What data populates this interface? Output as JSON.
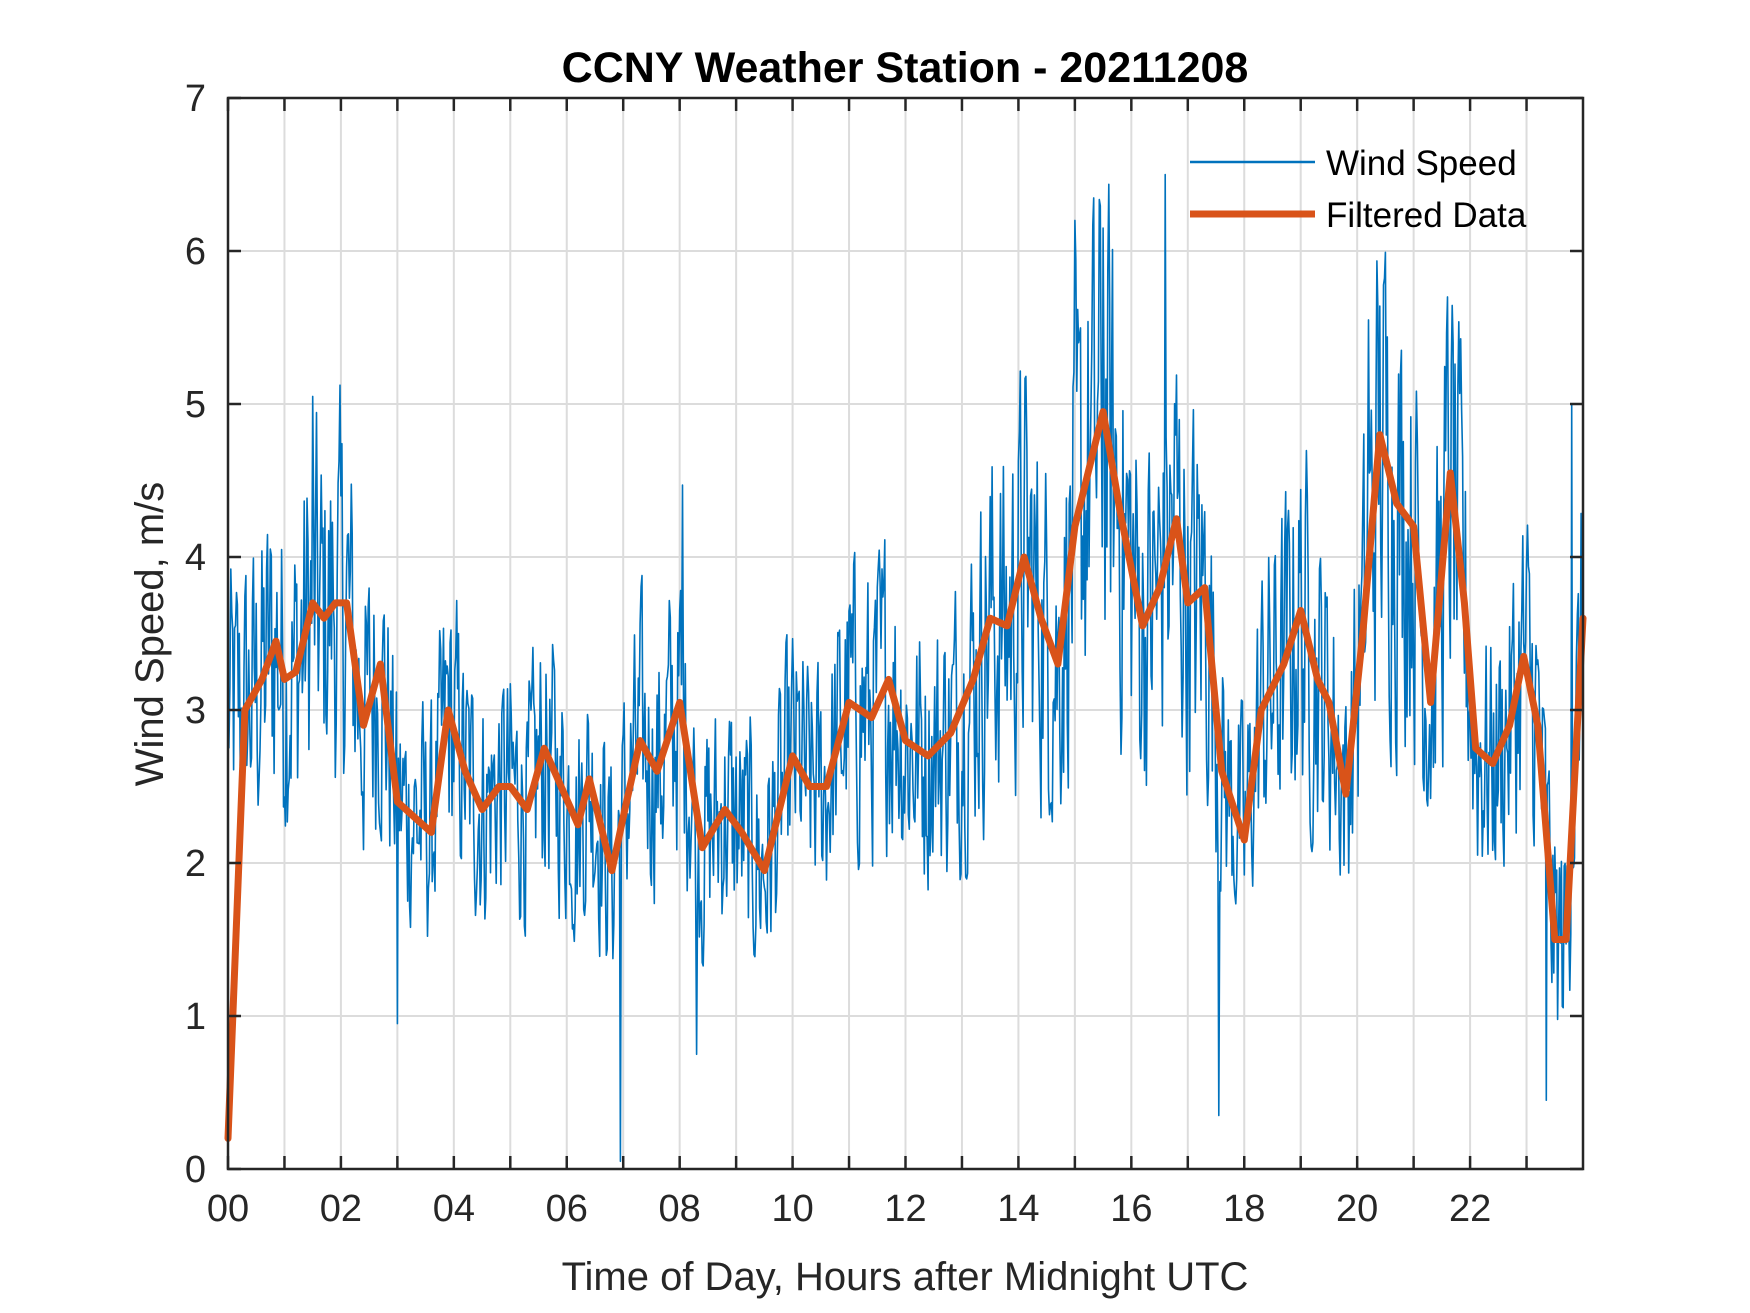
{
  "chart_data": {
    "type": "line",
    "title": "CCNY Weather Station - 20211208",
    "xlabel": "Time of Day, Hours after Midnight UTC",
    "ylabel": "Wind Speed, m/s",
    "xlim": [
      0,
      24
    ],
    "ylim": [
      0,
      7
    ],
    "x_ticks": [
      0,
      1,
      2,
      3,
      4,
      5,
      6,
      7,
      8,
      9,
      10,
      11,
      12,
      13,
      14,
      15,
      16,
      17,
      18,
      19,
      20,
      21,
      22,
      23
    ],
    "x_tick_labels": [
      "00",
      "",
      "02",
      "",
      "04",
      "",
      "06",
      "",
      "08",
      "",
      "10",
      "",
      "12",
      "",
      "14",
      "",
      "16",
      "",
      "18",
      "",
      "20",
      "",
      "22",
      ""
    ],
    "y_ticks": [
      0,
      1,
      2,
      3,
      4,
      5,
      6,
      7
    ],
    "y_tick_labels": [
      "0",
      "1",
      "2",
      "3",
      "4",
      "5",
      "6",
      "7"
    ],
    "grid": true,
    "legend": {
      "placement": "top-right",
      "entries": [
        "Wind Speed",
        "Filtered Data"
      ]
    },
    "series": [
      {
        "name": "Wind Speed",
        "color": "#0072BD",
        "style": "thin",
        "noise_envelope_note": "high-frequency raw samples oscillating around Filtered Data; peak 6.5 near 16.6 h, min 0.05 near 7.0 h",
        "peaks": [
          {
            "x": 1.5,
            "y": 5.05
          },
          {
            "x": 8.05,
            "y": 4.47
          },
          {
            "x": 15.0,
            "y": 6.2
          },
          {
            "x": 15.5,
            "y": 6.15
          },
          {
            "x": 16.6,
            "y": 6.5
          },
          {
            "x": 20.2,
            "y": 5.55
          },
          {
            "x": 21.6,
            "y": 5.7
          },
          {
            "x": 23.8,
            "y": 5.0
          }
        ],
        "troughs": [
          {
            "x": 3.0,
            "y": 0.95
          },
          {
            "x": 6.95,
            "y": 0.05
          },
          {
            "x": 8.3,
            "y": 0.75
          },
          {
            "x": 17.55,
            "y": 0.35
          },
          {
            "x": 23.35,
            "y": 0.45
          }
        ]
      },
      {
        "name": "Filtered Data",
        "color": "#D95319",
        "style": "thick",
        "x": [
          0.0,
          0.3,
          0.6,
          0.85,
          1.0,
          1.2,
          1.5,
          1.7,
          1.9,
          2.1,
          2.4,
          2.7,
          3.0,
          3.3,
          3.6,
          3.9,
          4.2,
          4.5,
          4.8,
          5.0,
          5.3,
          5.6,
          5.9,
          6.2,
          6.4,
          6.8,
          7.0,
          7.3,
          7.6,
          8.0,
          8.4,
          8.8,
          9.1,
          9.5,
          10.0,
          10.3,
          10.6,
          11.0,
          11.4,
          11.7,
          12.0,
          12.4,
          12.8,
          13.2,
          13.5,
          13.8,
          14.1,
          14.4,
          14.7,
          15.0,
          15.5,
          15.8,
          16.2,
          16.5,
          16.8,
          17.0,
          17.3,
          17.6,
          18.0,
          18.3,
          18.7,
          19.0,
          19.3,
          19.5,
          19.8,
          20.1,
          20.4,
          20.7,
          21.0,
          21.3,
          21.65,
          21.9,
          22.1,
          22.4,
          22.7,
          22.95,
          23.2,
          23.5,
          23.7,
          24.0
        ],
        "y": [
          0.2,
          3.0,
          3.2,
          3.45,
          3.2,
          3.25,
          3.7,
          3.6,
          3.7,
          3.7,
          2.9,
          3.3,
          2.4,
          2.3,
          2.2,
          3.0,
          2.6,
          2.35,
          2.5,
          2.5,
          2.35,
          2.75,
          2.5,
          2.25,
          2.55,
          1.95,
          2.3,
          2.8,
          2.6,
          3.05,
          2.1,
          2.35,
          2.2,
          1.95,
          2.7,
          2.5,
          2.5,
          3.05,
          2.95,
          3.2,
          2.8,
          2.7,
          2.85,
          3.2,
          3.6,
          3.55,
          4.0,
          3.6,
          3.3,
          4.2,
          4.95,
          4.3,
          3.55,
          3.8,
          4.25,
          3.7,
          3.8,
          2.6,
          2.15,
          3.0,
          3.3,
          3.65,
          3.2,
          3.05,
          2.45,
          3.5,
          4.8,
          4.35,
          4.2,
          3.05,
          4.55,
          3.7,
          2.75,
          2.65,
          2.9,
          3.35,
          2.9,
          1.5,
          1.5,
          3.6
        ]
      }
    ]
  }
}
